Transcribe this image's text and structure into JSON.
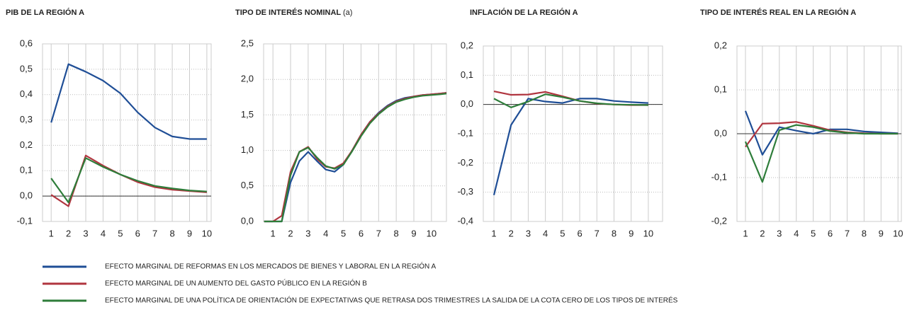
{
  "chart_data": [
    {
      "type": "line",
      "title": "PIB DE LA REGIÓN A",
      "x": [
        1,
        2,
        3,
        4,
        5,
        6,
        7,
        8,
        9,
        10
      ],
      "xlim": [
        0.5,
        10.25
      ],
      "xticks": [
        1,
        2,
        3,
        4,
        5,
        6,
        7,
        8,
        9,
        10
      ],
      "ylim": [
        -0.1,
        0.6
      ],
      "yticks": [
        {
          "value": -0.1,
          "label": "-0,1"
        },
        {
          "value": 0,
          "label": "0,0"
        },
        {
          "value": 0.1,
          "label": "0,1"
        },
        {
          "value": 0.2,
          "label": "0,2"
        },
        {
          "value": 0.3,
          "label": "0,3"
        },
        {
          "value": 0.4,
          "label": "0,4"
        },
        {
          "value": 0.5,
          "label": "0,5"
        },
        {
          "value": 0.6,
          "label": "0,6"
        }
      ],
      "grid": true,
      "series": [
        {
          "name": "EFECTO MARGINAL DE REFORMAS EN LOS MERCADOS DE BIENES Y LABORAL EN LA REGIÓN A",
          "color": "#1f4e96",
          "values": [
            0.29,
            0.52,
            0.49,
            0.455,
            0.405,
            0.33,
            0.27,
            0.235,
            0.225,
            0.225
          ]
        },
        {
          "name": "EFECTO MARGINAL DE UN AUMENTO DEL GASTO PÚBLICO EN LA REGIÓN B",
          "color": "#b0353f",
          "values": [
            0.005,
            -0.04,
            0.16,
            0.12,
            0.085,
            0.055,
            0.035,
            0.025,
            0.02,
            0.015
          ]
        },
        {
          "name": "EFECTO MARGINAL DE UNA POLÍTICA DE ORIENTACIÓN DE EXPECTATIVAS QUE RETRASA DOS TRIMESTRES LA SALIDA DE LA COTA CERO DE LOS TIPOS DE INTERÉS",
          "color": "#2e7d3a",
          "values": [
            0.07,
            -0.025,
            0.15,
            0.115,
            0.085,
            0.06,
            0.04,
            0.03,
            0.022,
            0.018
          ]
        }
      ]
    },
    {
      "type": "line",
      "title": "TIPO DE INTERÉS NOMINAL",
      "title_note": "(a)",
      "x": [
        0.5,
        1,
        1.5,
        2,
        2.5,
        3,
        3.5,
        4,
        4.5,
        5,
        5.5,
        6,
        6.5,
        7,
        7.5,
        8,
        8.5,
        9,
        9.5,
        10,
        10.5,
        10.85
      ],
      "xlim": [
        0.47,
        10.85
      ],
      "xticks": [
        1,
        2,
        3,
        4,
        5,
        6,
        7,
        8,
        9,
        10
      ],
      "ylim": [
        0,
        2.5
      ],
      "yticks": [
        {
          "value": 0,
          "label": "0,0"
        },
        {
          "value": 0.5,
          "label": "0,5"
        },
        {
          "value": 1,
          "label": "1,0"
        },
        {
          "value": 1.5,
          "label": "1,5"
        },
        {
          "value": 2,
          "label": "2,0"
        },
        {
          "value": 2.5,
          "label": "2,5"
        }
      ],
      "grid": true,
      "series": [
        {
          "name": "EFECTO MARGINAL DE REFORMAS EN LOS MERCADOS DE BIENES Y LABORAL EN LA REGIÓN A",
          "color": "#1f4e96",
          "values": [
            0,
            0,
            0,
            0.55,
            0.85,
            0.98,
            0.85,
            0.73,
            0.7,
            0.8,
            1.0,
            1.22,
            1.4,
            1.53,
            1.63,
            1.7,
            1.74,
            1.76,
            1.78,
            1.79,
            1.8,
            1.81
          ]
        },
        {
          "name": "EFECTO MARGINAL DE UN AUMENTO DEL GASTO PÚBLICO EN LA REGIÓN B",
          "color": "#b0353f",
          "values": [
            0,
            0,
            0.08,
            0.7,
            0.98,
            1.05,
            0.88,
            0.77,
            0.75,
            0.82,
            1.0,
            1.22,
            1.4,
            1.52,
            1.62,
            1.69,
            1.73,
            1.76,
            1.78,
            1.79,
            1.8,
            1.81
          ]
        },
        {
          "name": "EFECTO MARGINAL DE UNA POLÍTICA DE ORIENTACIÓN DE EXPECTATIVAS QUE RETRASA DOS TRIMESTRES LA SALIDA DE LA COTA CERO DE LOS TIPOS DE INTERÉS",
          "color": "#2e7d3a",
          "values": [
            0,
            0,
            0,
            0.65,
            0.98,
            1.04,
            0.9,
            0.78,
            0.74,
            0.8,
            0.99,
            1.2,
            1.38,
            1.51,
            1.61,
            1.68,
            1.72,
            1.75,
            1.77,
            1.78,
            1.79,
            1.8
          ]
        }
      ]
    },
    {
      "type": "line",
      "title": "INFLACIÓN DE LA REGIÓN A",
      "x": [
        1,
        2,
        3,
        4,
        5,
        6,
        7,
        8,
        9,
        10
      ],
      "xlim": [
        0.38,
        10.83
      ],
      "xticks": [
        1,
        2,
        3,
        4,
        5,
        6,
        7,
        8,
        9,
        10
      ],
      "ylim": [
        -0.4,
        0.2
      ],
      "yticks": [
        {
          "value": -0.4,
          "label": "-0,4"
        },
        {
          "value": -0.3,
          "label": "-0,3"
        },
        {
          "value": -0.2,
          "label": "-0,2"
        },
        {
          "value": -0.1,
          "label": "-0,1"
        },
        {
          "value": 0,
          "label": "0,0"
        },
        {
          "value": 0.1,
          "label": "0,1"
        },
        {
          "value": 0.2,
          "label": "0,2"
        }
      ],
      "grid": true,
      "series": [
        {
          "name": "EFECTO MARGINAL DE REFORMAS EN LOS MERCADOS DE BIENES Y LABORAL EN LA REGIÓN A",
          "color": "#1f4e96",
          "values": [
            -0.31,
            -0.07,
            0.02,
            0.01,
            0.005,
            0.02,
            0.02,
            0.012,
            0.008,
            0.005
          ]
        },
        {
          "name": "EFECTO MARGINAL DE UN AUMENTO DEL GASTO PÚBLICO EN LA REGIÓN B",
          "color": "#b0353f",
          "values": [
            0.045,
            0.033,
            0.034,
            0.043,
            0.028,
            0.012,
            0.003,
            0,
            -0.002,
            -0.002
          ]
        },
        {
          "name": "EFECTO MARGINAL DE UNA POLÍTICA DE ORIENTACIÓN DE EXPECTATIVAS QUE RETRASA DOS TRIMESTRES LA SALIDA DE LA COTA CERO DE LOS TIPOS DE INTERÉS",
          "color": "#2e7d3a",
          "values": [
            0.02,
            -0.01,
            0.01,
            0.035,
            0.025,
            0.012,
            0.004,
            0,
            -0.001,
            -0.002
          ]
        }
      ]
    },
    {
      "type": "line",
      "title": "TIPO DE INTERÉS REAL EN LA REGIÓN A",
      "x": [
        1,
        2,
        3,
        4,
        5,
        6,
        7,
        8,
        9,
        10
      ],
      "xlim": [
        0.5,
        10.2
      ],
      "xticks": [
        1,
        2,
        3,
        4,
        5,
        6,
        7,
        8,
        9,
        10
      ],
      "ylim": [
        -0.2,
        0.2
      ],
      "yticks": [
        {
          "value": -0.2,
          "label": "-0,2"
        },
        {
          "value": -0.1,
          "label": "-0,1"
        },
        {
          "value": 0,
          "label": "0,0"
        },
        {
          "value": 0.1,
          "label": "0,1"
        },
        {
          "value": 0.2,
          "label": "0,2"
        }
      ],
      "grid": true,
      "series": [
        {
          "name": "EFECTO MARGINAL DE REFORMAS EN LOS MERCADOS DE BIENES Y LABORAL EN LA REGIÓN A",
          "color": "#1f4e96",
          "values": [
            0.052,
            -0.048,
            0.015,
            0.007,
            0,
            0.01,
            0.01,
            0.005,
            0.003,
            0.001
          ]
        },
        {
          "name": "EFECTO MARGINAL DE UN AUMENTO DEL GASTO PÚBLICO EN LA REGIÓN B",
          "color": "#b0353f",
          "values": [
            -0.03,
            0.023,
            0.024,
            0.027,
            0.018,
            0.008,
            0.003,
            0.001,
            0,
            0
          ]
        },
        {
          "name": "EFECTO MARGINAL DE UNA POLÍTICA DE ORIENTACIÓN DE EXPECTATIVAS QUE RETRASA DOS TRIMESTRES LA SALIDA DE LA COTA CERO DE LOS TIPOS DE INTERÉS",
          "color": "#2e7d3a",
          "values": [
            -0.018,
            -0.11,
            0.008,
            0.02,
            0.015,
            0.006,
            0.002,
            0,
            0,
            0
          ]
        }
      ]
    }
  ]
}
